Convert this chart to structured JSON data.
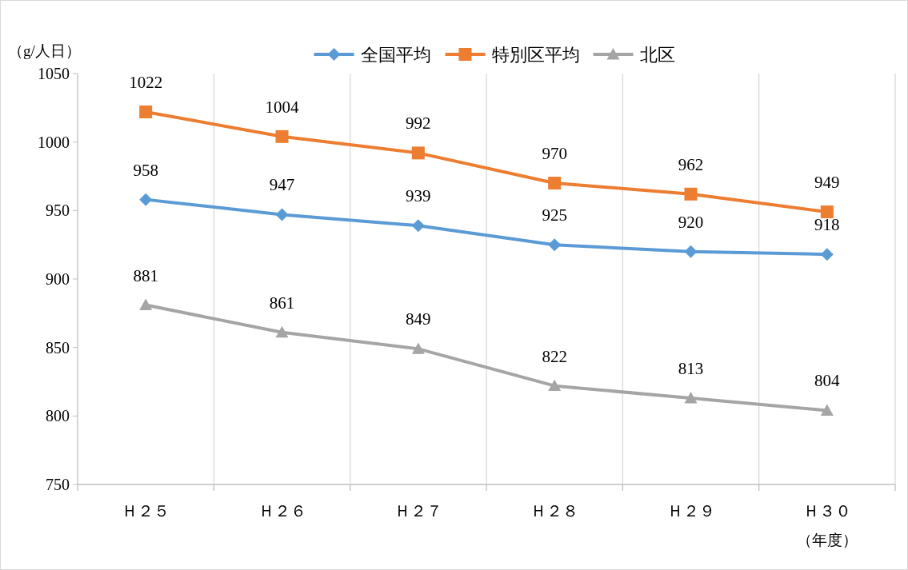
{
  "chart_data": {
    "type": "line",
    "categories": [
      "Ｈ２５",
      "Ｈ２６",
      "Ｈ２７",
      "Ｈ２８",
      "Ｈ２９",
      "Ｈ３０"
    ],
    "ylabel": "（g/人日）",
    "xlabel": "（年度）",
    "ylim": [
      750,
      1050
    ],
    "yticks": [
      750,
      800,
      850,
      900,
      950,
      1000,
      1050
    ],
    "grid": "x",
    "legend": "top",
    "data_labels": true,
    "series": [
      {
        "name": "全国平均",
        "color": "#5b9bd5",
        "marker": "diamond",
        "values": [
          958,
          947,
          939,
          925,
          920,
          918
        ]
      },
      {
        "name": "特別区平均",
        "color": "#ed7d31",
        "marker": "square",
        "values": [
          1022,
          1004,
          992,
          970,
          962,
          949
        ]
      },
      {
        "name": "北区",
        "color": "#a5a5a5",
        "marker": "triangle",
        "values": [
          881,
          861,
          849,
          822,
          813,
          804
        ]
      }
    ]
  }
}
